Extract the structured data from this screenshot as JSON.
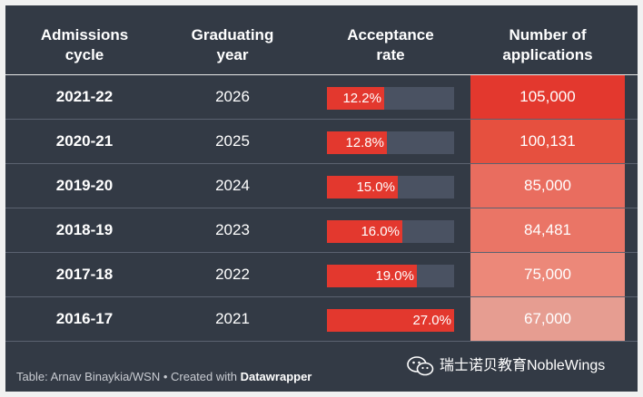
{
  "headers": {
    "cycle": [
      "Admissions",
      "cycle"
    ],
    "year": [
      "Graduating",
      "year"
    ],
    "rate": [
      "Acceptance",
      "rate"
    ],
    "apps": [
      "Number of",
      "applications"
    ]
  },
  "colors": {
    "background": "#333a45",
    "bar_fill": "#e3382e",
    "bar_track": "#4a5262",
    "application_shades": [
      "#e3382e",
      "#e6503f",
      "#e96d5f",
      "#ea7566",
      "#ec8879",
      "#e69d91"
    ]
  },
  "chart_data": {
    "type": "table",
    "columns": [
      "Admissions cycle",
      "Graduating year",
      "Acceptance rate",
      "Number of applications"
    ],
    "rate_scale_max": 27.0,
    "rows": [
      {
        "cycle": "2021-22",
        "year": "2026",
        "rate": 12.2,
        "rate_label": "12.2%",
        "applications": 105000,
        "applications_label": "105,000"
      },
      {
        "cycle": "2020-21",
        "year": "2025",
        "rate": 12.8,
        "rate_label": "12.8%",
        "applications": 100131,
        "applications_label": "100,131"
      },
      {
        "cycle": "2019-20",
        "year": "2024",
        "rate": 15.0,
        "rate_label": "15.0%",
        "applications": 85000,
        "applications_label": "85,000"
      },
      {
        "cycle": "2018-19",
        "year": "2023",
        "rate": 16.0,
        "rate_label": "16.0%",
        "applications": 84481,
        "applications_label": "84,481"
      },
      {
        "cycle": "2017-18",
        "year": "2022",
        "rate": 19.0,
        "rate_label": "19.0%",
        "applications": 75000,
        "applications_label": "75,000"
      },
      {
        "cycle": "2016-17",
        "year": "2021",
        "rate": 27.0,
        "rate_label": "27.0%",
        "applications": 67000,
        "applications_label": "67,000"
      }
    ]
  },
  "footer": {
    "source": "Table: Arnav Binaykia/WSN • Created with ",
    "tool": "Datawrapper"
  },
  "watermark": {
    "icon": "wechat-icon",
    "text": "瑞士诺贝教育NobleWings"
  }
}
